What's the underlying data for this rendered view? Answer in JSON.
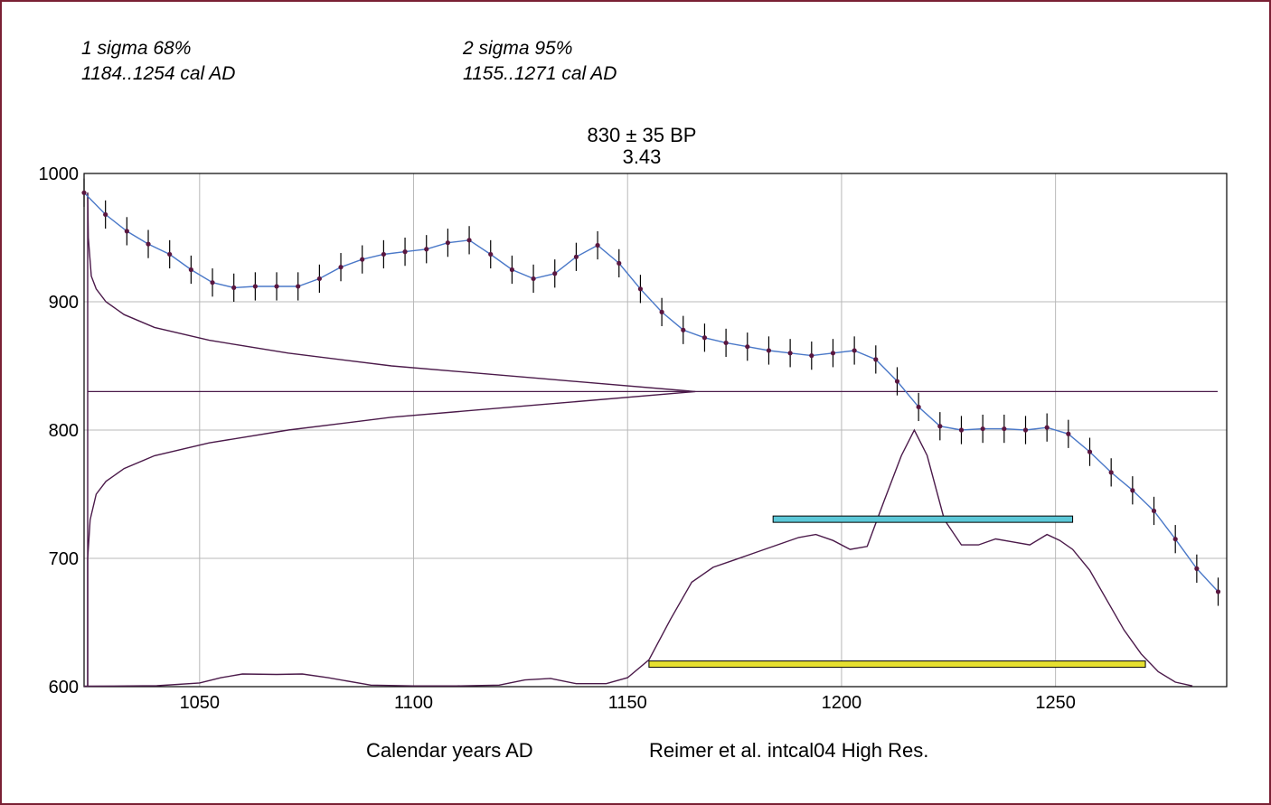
{
  "header": {
    "sigma1_label": "1 sigma 68%",
    "sigma1_range": "1184..1254 cal AD",
    "sigma2_label": "2 sigma 95%",
    "sigma2_range": "1155..1271 cal AD"
  },
  "colors": {
    "frame": "#7a2034",
    "curve": "#4a78c8",
    "curve_points": "#5a1740",
    "distribution": "#4b1a4a",
    "sigma1_bar": "#5cc8d8",
    "sigma2_bar": "#e6e030",
    "grid": "#b8b8b8"
  },
  "chart_data": {
    "type": "line",
    "title": "830 ± 35 BP",
    "subtitle": "3.43",
    "xlabel": "Calendar years  AD",
    "calibration_label": "Reimer et al. intcal04 High Res.",
    "xlim": [
      1023,
      1290
    ],
    "ylim": [
      600,
      1000
    ],
    "x_ticks": [
      1050,
      1100,
      1150,
      1200,
      1250
    ],
    "y_ticks": [
      600,
      700,
      800,
      900,
      1000
    ],
    "grid": true,
    "radiocarbon_age": 830,
    "radiocarbon_error": 35,
    "series": [
      {
        "role": "calibration_curve",
        "x": [
          1023,
          1028,
          1033,
          1038,
          1043,
          1048,
          1053,
          1058,
          1063,
          1068,
          1073,
          1078,
          1083,
          1088,
          1093,
          1098,
          1103,
          1108,
          1113,
          1118,
          1123,
          1128,
          1133,
          1138,
          1143,
          1148,
          1153,
          1158,
          1163,
          1168,
          1173,
          1178,
          1183,
          1188,
          1193,
          1198,
          1203,
          1208,
          1213,
          1218,
          1223,
          1228,
          1233,
          1238,
          1243,
          1248,
          1253,
          1258,
          1263,
          1268,
          1273,
          1278,
          1283,
          1288
        ],
        "y": [
          985,
          968,
          955,
          945,
          937,
          925,
          915,
          911,
          912,
          912,
          912,
          918,
          927,
          933,
          937,
          939,
          941,
          946,
          948,
          937,
          925,
          918,
          922,
          935,
          944,
          930,
          910,
          892,
          878,
          872,
          868,
          865,
          862,
          860,
          858,
          860,
          862,
          855,
          838,
          818,
          803,
          800,
          801,
          801,
          800,
          802,
          797,
          783,
          767,
          753,
          737,
          715,
          692,
          674
        ],
        "error": 11
      }
    ],
    "radiocarbon_distribution": {
      "y": [
        600,
        700,
        730,
        750,
        760,
        770,
        780,
        790,
        800,
        810,
        820,
        830,
        840,
        850,
        860,
        870,
        880,
        890,
        900,
        910,
        920,
        950,
        985
      ],
      "density": [
        0,
        0,
        0.004,
        0.014,
        0.03,
        0.06,
        0.11,
        0.2,
        0.33,
        0.5,
        0.75,
        1.0,
        0.75,
        0.5,
        0.33,
        0.2,
        0.11,
        0.06,
        0.03,
        0.014,
        0.006,
        0.001,
        0
      ]
    },
    "calibrated_distribution": {
      "x": [
        1023,
        1040,
        1050,
        1055,
        1060,
        1068,
        1074,
        1080,
        1090,
        1100,
        1110,
        1120,
        1126,
        1132,
        1138,
        1145,
        1150,
        1155,
        1160,
        1165,
        1170,
        1175,
        1180,
        1185,
        1190,
        1194,
        1198,
        1202,
        1206,
        1210,
        1214,
        1217,
        1220,
        1224,
        1228,
        1232,
        1236,
        1240,
        1244,
        1248,
        1251,
        1254,
        1258,
        1262,
        1266,
        1270,
        1274,
        1278,
        1282
      ],
      "density": [
        0.003,
        0.006,
        0.025,
        0.06,
        0.085,
        0.082,
        0.085,
        0.06,
        0.01,
        0.005,
        0.005,
        0.01,
        0.045,
        0.055,
        0.02,
        0.02,
        0.06,
        0.18,
        0.45,
        0.7,
        0.8,
        0.85,
        0.9,
        0.95,
        1.0,
        1.02,
        0.98,
        0.92,
        0.94,
        1.25,
        1.55,
        1.72,
        1.55,
        1.12,
        0.95,
        0.95,
        0.99,
        0.97,
        0.95,
        1.02,
        0.98,
        0.92,
        0.78,
        0.58,
        0.38,
        0.22,
        0.1,
        0.03,
        0.005
      ]
    },
    "ranges": {
      "sigma1": [
        1184,
        1254
      ],
      "sigma2": [
        1155,
        1271
      ]
    }
  }
}
